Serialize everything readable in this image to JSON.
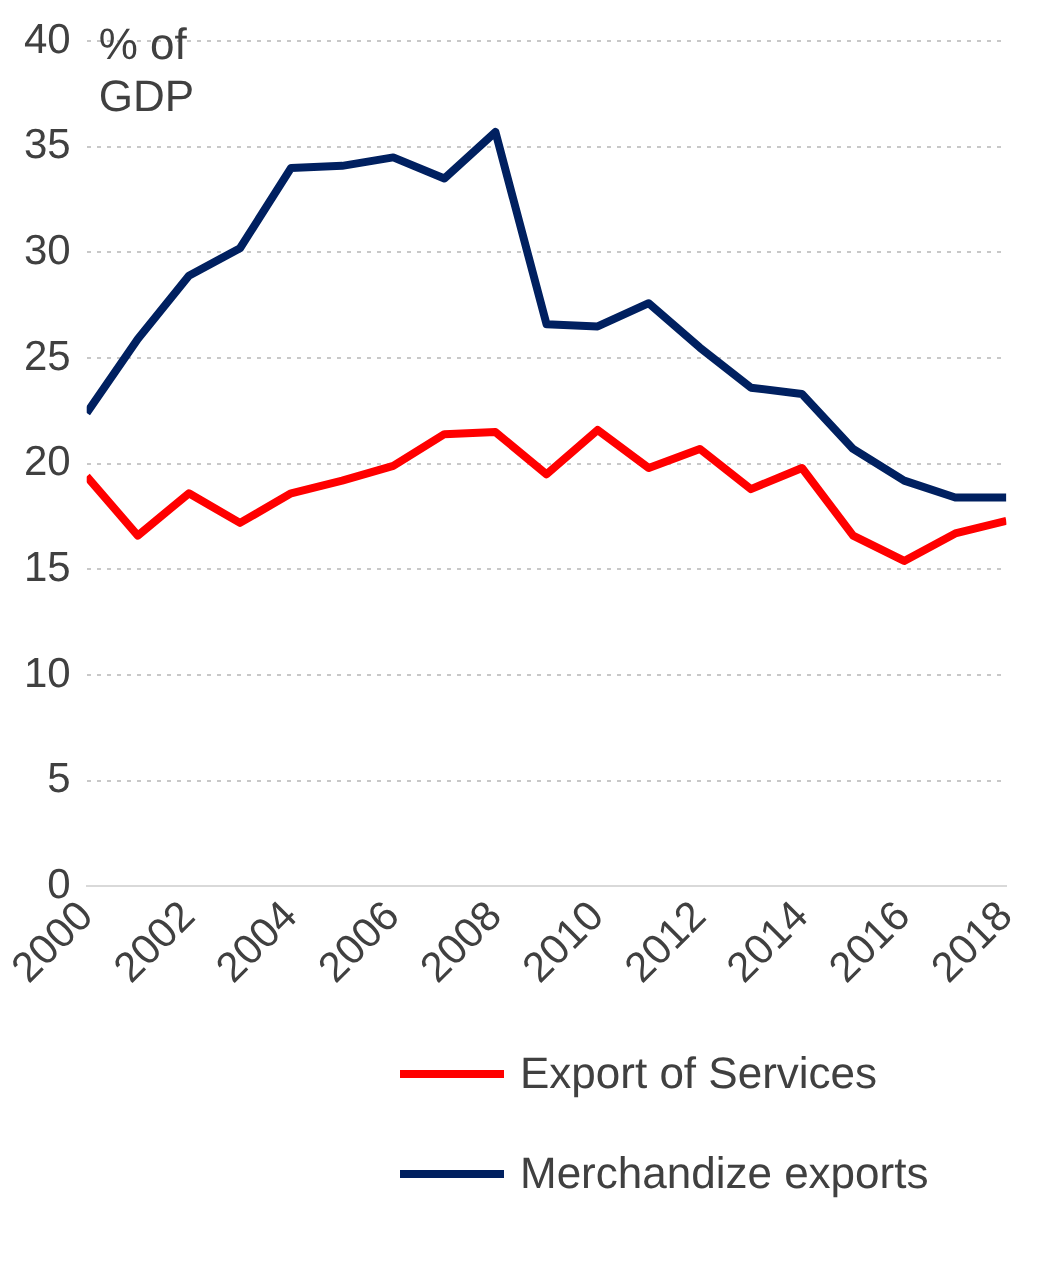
{
  "chart_data": {
    "type": "line",
    "ylabel": "% of GDP",
    "x": [
      2000,
      2001,
      2002,
      2003,
      2004,
      2005,
      2006,
      2007,
      2008,
      2009,
      2010,
      2011,
      2012,
      2013,
      2014,
      2015,
      2016,
      2017,
      2018
    ],
    "series": [
      {
        "name": "Export of Services",
        "color": "#ff0000",
        "values": [
          19.4,
          16.6,
          18.6,
          17.2,
          18.6,
          19.2,
          19.9,
          21.4,
          21.5,
          19.5,
          21.6,
          19.8,
          20.7,
          18.8,
          19.8,
          16.6,
          15.4,
          16.7,
          17.3
        ]
      },
      {
        "name": "Merchandize exports",
        "color": "#002060",
        "values": [
          22.4,
          25.9,
          28.9,
          30.2,
          34.0,
          34.1,
          34.5,
          33.5,
          35.7,
          26.6,
          26.5,
          27.6,
          25.5,
          23.6,
          23.3,
          20.7,
          19.2,
          18.4,
          18.4
        ]
      }
    ],
    "xlim": [
      2000,
      2018
    ],
    "xticks": [
      2000,
      2002,
      2004,
      2006,
      2008,
      2010,
      2012,
      2014,
      2016,
      2018
    ],
    "ylim": [
      0,
      40
    ],
    "yticks": [
      0,
      5,
      10,
      15,
      20,
      25,
      30,
      35,
      40
    ],
    "grid": "y",
    "legend": "bottom",
    "marker": "none",
    "line_style": "solid"
  }
}
